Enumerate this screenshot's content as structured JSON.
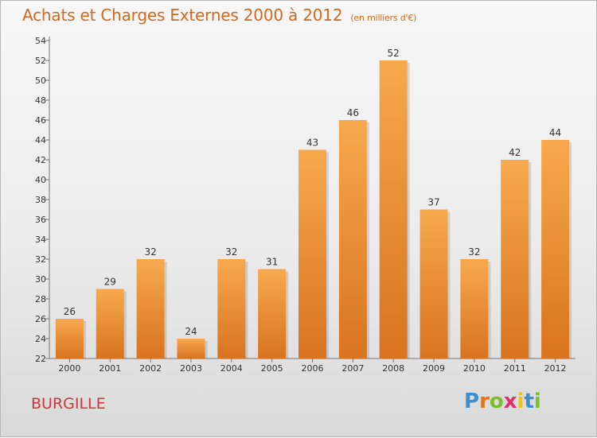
{
  "title": "Achats et Charges Externes 2000 à 2012",
  "subtitle": "(en milliers d'€)",
  "place": "BURGILLE",
  "logo": {
    "letters": [
      "P",
      "r",
      "o",
      "x",
      "i",
      "t",
      "i"
    ],
    "colors": [
      "#3a8fd0",
      "#e8731a",
      "#7cbc2e",
      "#e02f6a",
      "#f0c419",
      "#3a8fd0",
      "#7cbc2e"
    ]
  },
  "colors": {
    "bar_light": "#f7a94e",
    "bar_dark": "#d9731f",
    "title": "#d2691e",
    "place": "#d2333a"
  },
  "chart_data": {
    "type": "bar",
    "categories": [
      "2000",
      "2001",
      "2002",
      "2003",
      "2004",
      "2005",
      "2006",
      "2007",
      "2008",
      "2009",
      "2010",
      "2011",
      "2012"
    ],
    "values": [
      26,
      29,
      32,
      24,
      32,
      31,
      43,
      46,
      52,
      37,
      32,
      42,
      44
    ],
    "ylim": [
      22,
      54
    ],
    "yticks": [
      22,
      24,
      26,
      28,
      30,
      32,
      34,
      36,
      38,
      40,
      42,
      44,
      46,
      48,
      50,
      52,
      54
    ],
    "grid": false
  }
}
